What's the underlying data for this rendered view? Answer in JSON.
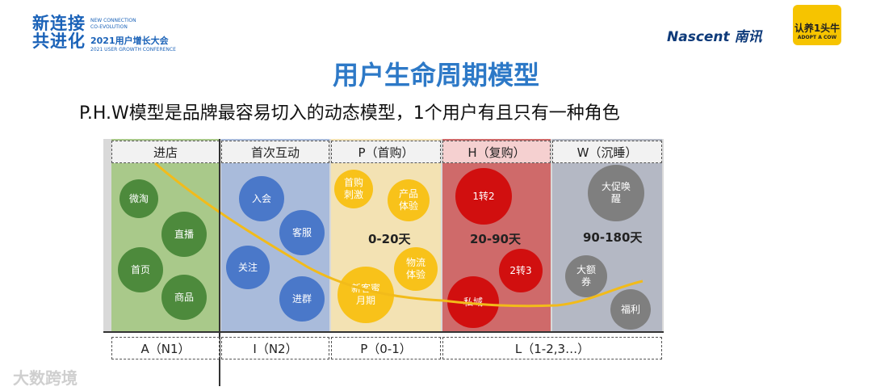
{
  "header": {
    "left_logo": {
      "main": "新连接\n共进化",
      "line1": "NEW CONNECTION",
      "line2": "CO-EVOLUTION",
      "line3": "2021用户增长大会",
      "line4": "2021 USER GROWTH CONFERENCE"
    },
    "nascent_logo": "Nascent 南讯",
    "cow_logo": {
      "main": "认养1头牛",
      "sub": "ADOPT A COW"
    }
  },
  "title": "用户生命周期模型",
  "subtitle": "P.H.W模型是品牌最容易切入的动态模型，1个用户有且只有一种角色",
  "stages": [
    {
      "label": "进店",
      "color": "#a9c98a"
    },
    {
      "label": "首次互动",
      "color": "#a9bbdb"
    },
    {
      "label": "P（首购）",
      "color": "#f3e2b3"
    },
    {
      "label": "H（复购）",
      "color": "#cf6a6a"
    },
    {
      "label": "W（沉睡）",
      "color": "#b4b8c4"
    }
  ],
  "circles": {
    "weitao": "微淘",
    "zhibo": "直播",
    "shouye": "首页",
    "shangpin": "商品",
    "ruhui": "入会",
    "kefu": "客服",
    "guanzhu": "关注",
    "jinqun": "进群",
    "shougou": "首购\n刺激",
    "chanpin": "产品\n体验",
    "wuliu": "物流\n体验",
    "xinke": "新客蜜\n月期",
    "z12": "1转2",
    "z23": "2转3",
    "siyu": "私域",
    "dacu": "大促唤\n醒",
    "dae": "大额\n券",
    "fuli": "福利"
  },
  "ranges": [
    "0-20天",
    "20-90天",
    "90-180天"
  ],
  "bottom_labels": [
    "A（N1）",
    "I（N2）",
    "P（0-1）",
    "L（1-2,3…）"
  ],
  "colors": {
    "green": "#4d8a3c",
    "blue": "#4a78c9",
    "yellow": "#f8c21a",
    "red": "#d10f0f",
    "gray": "#7f7f7f",
    "curve": "#f2bb1a",
    "title": "#2d79c7"
  },
  "footer_logo": "大数跨境"
}
